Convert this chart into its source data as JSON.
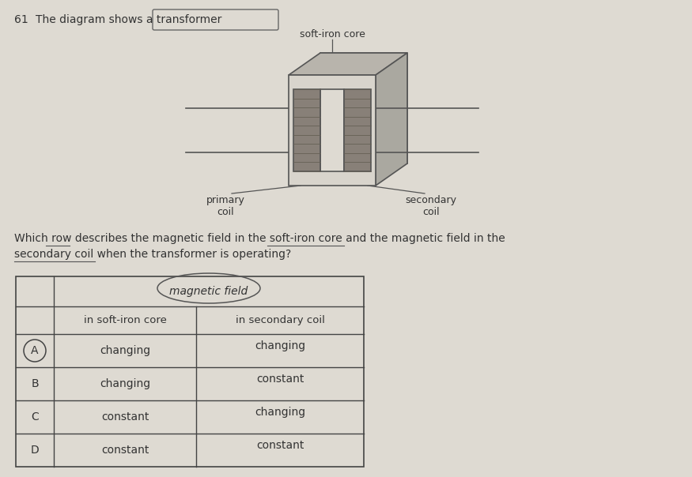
{
  "question_number": "61",
  "question_text": "The diagram shows a transformer",
  "question_text2": "Which row describes the magnetic field in the soft-iron core and the magnetic field in the",
  "question_text3": "secondary coil when the transformer is operating?",
  "bg_color": "#dedad2",
  "table_header_merged": "magnetic field",
  "col1_header": "in soft-iron core",
  "col2_header": "in secondary coil",
  "rows": [
    {
      "label": "A",
      "col1": "changing",
      "col2": "changing",
      "circled": true
    },
    {
      "label": "B",
      "col1": "changing",
      "col2": "constant",
      "circled": false
    },
    {
      "label": "C",
      "col1": "constant",
      "col2": "changing",
      "circled": false
    },
    {
      "label": "D",
      "col1": "constant",
      "col2": "constant",
      "circled": false
    }
  ],
  "soft_iron_label": "soft-iron core",
  "primary_coil_label": "primary\ncoil",
  "secondary_coil_label": "secondary\ncoil"
}
